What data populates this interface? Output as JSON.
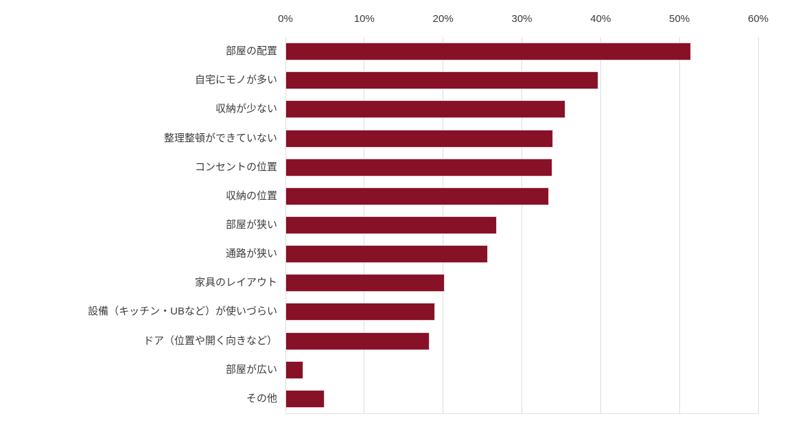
{
  "chart_data": {
    "type": "bar",
    "orientation": "horizontal",
    "title": "",
    "xlabel": "",
    "ylabel": "",
    "unit": "%",
    "categories": [
      "部屋の配置",
      "自宅にモノが多い",
      "収納が少ない",
      "整理整頓ができていない",
      "コンセントの位置",
      "収納の位置",
      "部屋が狭い",
      "通路が狭い",
      "家具のレイアウト",
      "設備（キッチン・UBなど）が使いづらい",
      "ドア（位置や開く向きなど）",
      "部屋が広い",
      "その他"
    ],
    "values": [
      51.5,
      39.7,
      35.5,
      34.0,
      33.9,
      33.4,
      26.8,
      25.7,
      20.2,
      19.0,
      18.3,
      2.3,
      5.0
    ],
    "x_ticks": [
      "0%",
      "10%",
      "20%",
      "30%",
      "40%",
      "50%",
      "60%"
    ],
    "x_tick_values": [
      0,
      10,
      20,
      30,
      40,
      50,
      60
    ],
    "xlim": [
      0,
      60
    ],
    "grid": true,
    "legend": false,
    "colors": {
      "bar_fill": "#871126",
      "bar_border": "#eed0d6",
      "gridline": "#dcdcdc",
      "axis_line": "#e2e2e2",
      "text": "#3b3b3b"
    }
  }
}
